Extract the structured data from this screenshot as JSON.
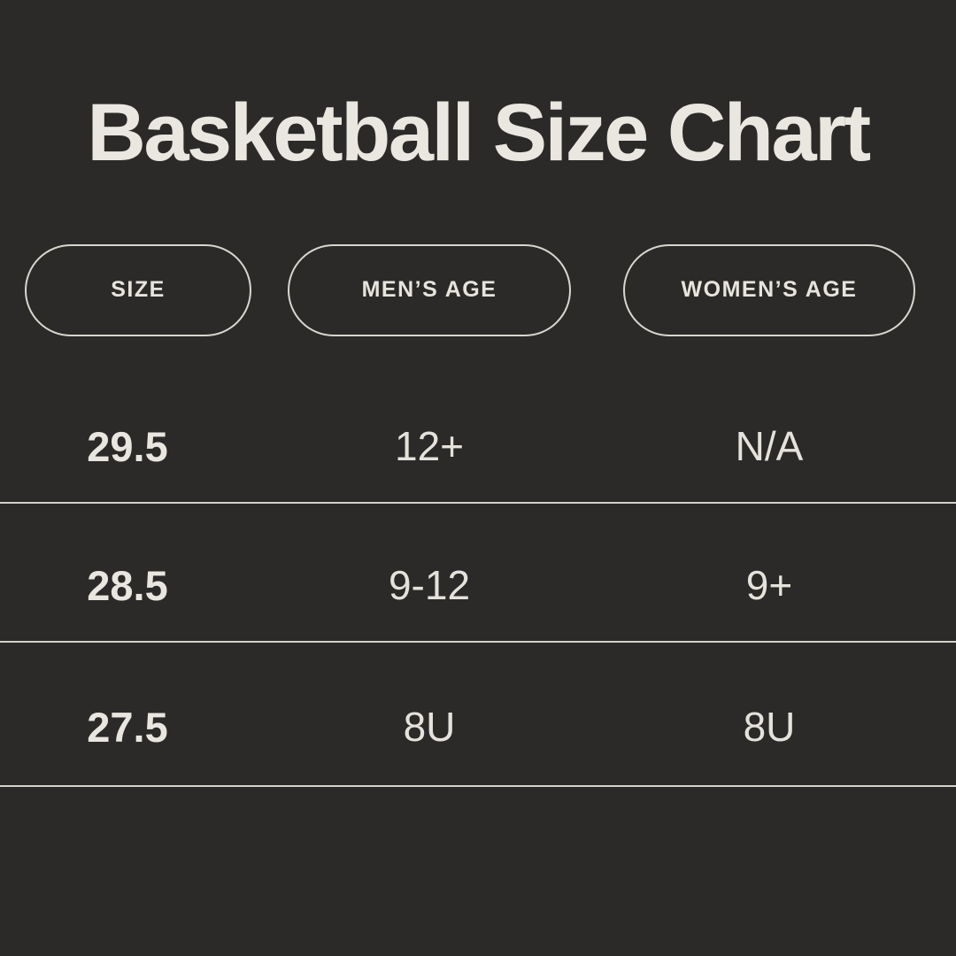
{
  "title": "Basketball Size Chart",
  "colors": {
    "background": "#2b2a29",
    "text": "#e7e4dd",
    "title_text": "#eae7e0",
    "pill_border": "#d9d6cf",
    "divider": "#d5d2cb"
  },
  "table": {
    "columns": [
      "SIZE",
      "MEN’S AGE",
      "WOMEN’S AGE"
    ],
    "rows": [
      [
        "29.5",
        "12+",
        "N/A"
      ],
      [
        "28.5",
        "9-12",
        "9+"
      ],
      [
        "27.5",
        "8U",
        "8U"
      ]
    ]
  },
  "chart_data": {
    "type": "table",
    "title": "Basketball Size Chart",
    "columns": [
      "Size",
      "Men's Age",
      "Women's Age"
    ],
    "rows": [
      {
        "size": "29.5",
        "mens_age": "12+",
        "womens_age": "N/A"
      },
      {
        "size": "28.5",
        "mens_age": "9-12",
        "womens_age": "9+"
      },
      {
        "size": "27.5",
        "mens_age": "8U",
        "womens_age": "8U"
      }
    ],
    "layout": {
      "header_style": "outlined-pills",
      "row_dividers": "full-width",
      "theme": "dark"
    }
  }
}
